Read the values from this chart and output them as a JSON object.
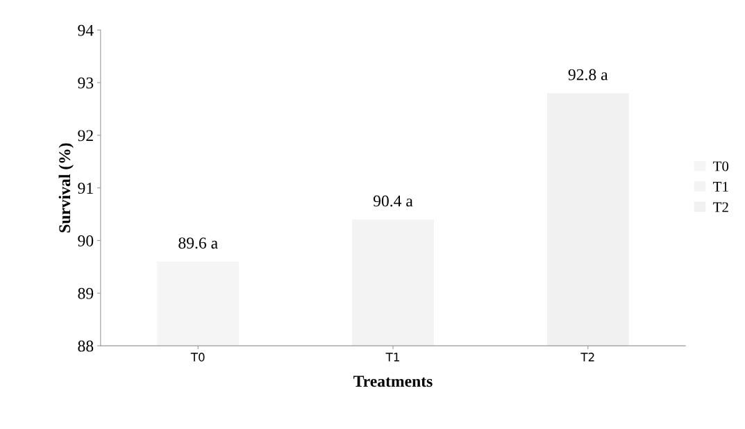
{
  "chart_data": {
    "type": "bar",
    "xlabel": "Treatments",
    "ylabel": "Survival (%)",
    "categories": [
      "T0",
      "T1",
      "T2"
    ],
    "series": [
      {
        "name": "T0",
        "color": "#f5f5f5",
        "values": [
          89.6,
          null,
          null
        ],
        "value_labels": [
          "89.6 a",
          null,
          null
        ]
      },
      {
        "name": "T1",
        "color": "#f3f3f3",
        "values": [
          null,
          90.4,
          null
        ],
        "value_labels": [
          null,
          "90.4 a",
          null
        ]
      },
      {
        "name": "T2",
        "color": "#f1f1f1",
        "values": [
          null,
          null,
          92.8
        ],
        "value_labels": [
          null,
          null,
          "92.8 a"
        ]
      }
    ],
    "ylim": [
      88,
      94
    ],
    "yticks": [
      88,
      89,
      90,
      91,
      92,
      93,
      94
    ],
    "grid": false,
    "legend": "right"
  }
}
